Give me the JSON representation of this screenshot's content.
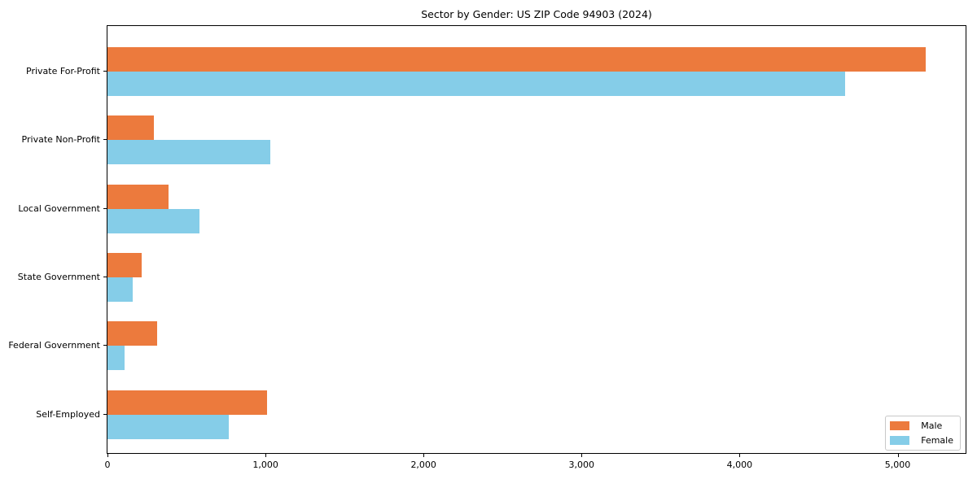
{
  "figure": {
    "background": "#ffffff",
    "spine_color": "#000000",
    "text_color": "#000000"
  },
  "chart_data": {
    "type": "bar",
    "orientation": "horizontal",
    "title": "Sector by Gender: US ZIP Code 94903 (2024)",
    "categories": [
      "Private For-Profit",
      "Private Non-Profit",
      "Local Government",
      "State Government",
      "Federal Government",
      "Self-Employed"
    ],
    "series": [
      {
        "name": "Male",
        "color": "#ec7a3d",
        "values": [
          5175,
          295,
          385,
          215,
          315,
          1010
        ]
      },
      {
        "name": "Female",
        "color": "#85cde8",
        "values": [
          4665,
          1030,
          580,
          160,
          110,
          765
        ]
      }
    ],
    "xlabel": "",
    "ylabel": "",
    "xlim": [
      0,
      5430
    ],
    "xticks": [
      0,
      1000,
      2000,
      3000,
      4000,
      5000
    ],
    "xtick_labels": [
      "0",
      "1,000",
      "2,000",
      "3,000",
      "4,000",
      "5,000"
    ],
    "grid": false,
    "legend": {
      "position": "lower right",
      "labels": [
        "Male",
        "Female"
      ]
    }
  }
}
